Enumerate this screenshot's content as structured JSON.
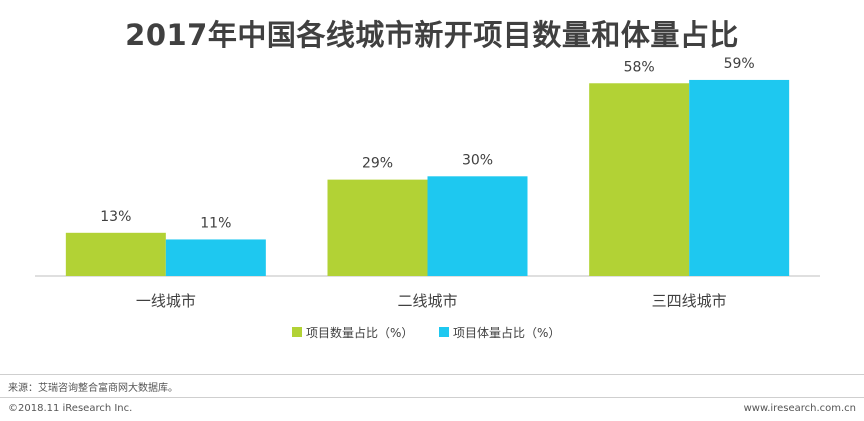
{
  "chart_data": {
    "type": "bar",
    "title": "2017年中国各线城市新开项目数量和体量占比",
    "categories": [
      "一线城市",
      "二线城市",
      "三四线城市"
    ],
    "series": [
      {
        "name": "项目数量占比（%）",
        "values": [
          13,
          29,
          58
        ],
        "labels": [
          "13%",
          "29%",
          "58%"
        ],
        "color": "#b2d235"
      },
      {
        "name": "项目体量占比（%）",
        "values": [
          11,
          30,
          59
        ],
        "labels": [
          "11%",
          "30%",
          "59%"
        ],
        "color": "#1ec8f0"
      }
    ],
    "ylim": [
      0,
      65
    ],
    "grid": false,
    "legend": "bottom"
  },
  "footer": {
    "source": "来源：艾瑞咨询整合富商网大数据库。",
    "copyright": "©2018.11 iResearch Inc.",
    "website": "www.iresearch.com.cn"
  }
}
